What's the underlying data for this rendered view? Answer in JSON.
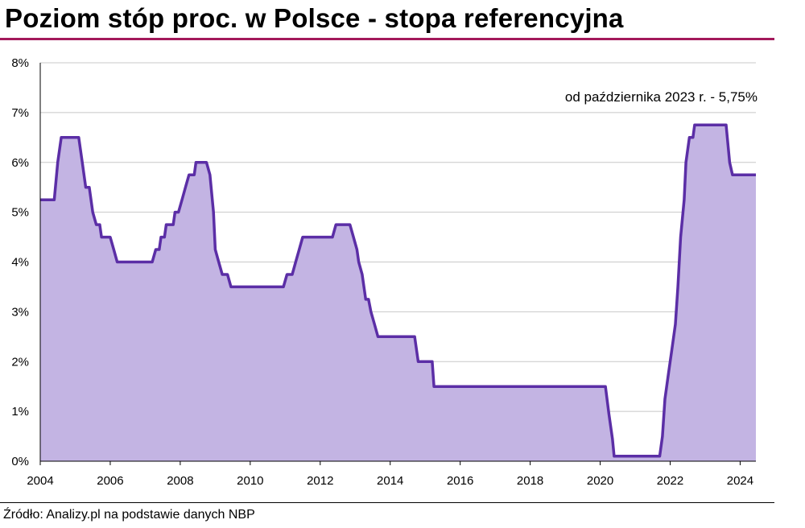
{
  "title": "Poziom stóp proc. w Polsce - stopa referencyjna",
  "source": "Źródło: Analizy.pl na podstawie danych NBP",
  "colors": {
    "title_rule": "#a3195b",
    "line": "#5b2ea6",
    "area": "#c3b4e3",
    "grid": "#c8c8c8",
    "axis": "#000000"
  },
  "chart_data": {
    "type": "area",
    "annotation": "od października  2023 r. - 5,75%",
    "xlim": [
      2004,
      2024.45
    ],
    "ylim": [
      0,
      8
    ],
    "x_ticks": [
      2004,
      2006,
      2008,
      2010,
      2012,
      2014,
      2016,
      2018,
      2020,
      2022,
      2024
    ],
    "x_tick_labels": [
      "2004",
      "2006",
      "2008",
      "2010",
      "2012",
      "2014",
      "2016",
      "2018",
      "2020",
      "2022",
      "2024"
    ],
    "y_ticks": [
      0,
      1,
      2,
      3,
      4,
      5,
      6,
      7,
      8
    ],
    "y_tick_labels": [
      "0%",
      "1%",
      "2%",
      "3%",
      "4%",
      "5%",
      "6%",
      "7%",
      "8%"
    ],
    "grid": true,
    "series": [
      {
        "points": [
          [
            2004.0,
            5.25
          ],
          [
            2004.4,
            5.25
          ],
          [
            2004.5,
            6.0
          ],
          [
            2004.6,
            6.5
          ],
          [
            2005.1,
            6.5
          ],
          [
            2005.2,
            6.0
          ],
          [
            2005.3,
            5.5
          ],
          [
            2005.4,
            5.5
          ],
          [
            2005.5,
            5.0
          ],
          [
            2005.6,
            4.75
          ],
          [
            2005.7,
            4.75
          ],
          [
            2005.75,
            4.5
          ],
          [
            2006.0,
            4.5
          ],
          [
            2006.1,
            4.25
          ],
          [
            2006.2,
            4.0
          ],
          [
            2007.2,
            4.0
          ],
          [
            2007.3,
            4.25
          ],
          [
            2007.4,
            4.25
          ],
          [
            2007.45,
            4.5
          ],
          [
            2007.55,
            4.5
          ],
          [
            2007.6,
            4.75
          ],
          [
            2007.8,
            4.75
          ],
          [
            2007.85,
            5.0
          ],
          [
            2007.95,
            5.0
          ],
          [
            2008.05,
            5.25
          ],
          [
            2008.15,
            5.5
          ],
          [
            2008.25,
            5.75
          ],
          [
            2008.4,
            5.75
          ],
          [
            2008.45,
            6.0
          ],
          [
            2008.75,
            6.0
          ],
          [
            2008.85,
            5.75
          ],
          [
            2008.95,
            5.0
          ],
          [
            2009.0,
            4.25
          ],
          [
            2009.1,
            4.0
          ],
          [
            2009.2,
            3.75
          ],
          [
            2009.35,
            3.75
          ],
          [
            2009.45,
            3.5
          ],
          [
            2010.95,
            3.5
          ],
          [
            2011.05,
            3.75
          ],
          [
            2011.2,
            3.75
          ],
          [
            2011.3,
            4.0
          ],
          [
            2011.4,
            4.25
          ],
          [
            2011.5,
            4.5
          ],
          [
            2012.35,
            4.5
          ],
          [
            2012.45,
            4.75
          ],
          [
            2012.85,
            4.75
          ],
          [
            2012.95,
            4.5
          ],
          [
            2013.05,
            4.25
          ],
          [
            2013.1,
            4.0
          ],
          [
            2013.2,
            3.75
          ],
          [
            2013.3,
            3.25
          ],
          [
            2013.38,
            3.25
          ],
          [
            2013.45,
            3.0
          ],
          [
            2013.55,
            2.75
          ],
          [
            2013.65,
            2.5
          ],
          [
            2014.7,
            2.5
          ],
          [
            2014.8,
            2.0
          ],
          [
            2015.2,
            2.0
          ],
          [
            2015.25,
            1.5
          ],
          [
            2020.15,
            1.5
          ],
          [
            2020.25,
            0.95
          ],
          [
            2020.35,
            0.45
          ],
          [
            2020.4,
            0.1
          ],
          [
            2021.7,
            0.1
          ],
          [
            2021.78,
            0.5
          ],
          [
            2021.85,
            1.25
          ],
          [
            2021.95,
            1.75
          ],
          [
            2022.05,
            2.25
          ],
          [
            2022.15,
            2.75
          ],
          [
            2022.22,
            3.5
          ],
          [
            2022.3,
            4.5
          ],
          [
            2022.4,
            5.25
          ],
          [
            2022.45,
            6.0
          ],
          [
            2022.55,
            6.5
          ],
          [
            2022.65,
            6.5
          ],
          [
            2022.7,
            6.75
          ],
          [
            2023.6,
            6.75
          ],
          [
            2023.7,
            6.0
          ],
          [
            2023.78,
            5.75
          ],
          [
            2024.45,
            5.75
          ]
        ]
      }
    ]
  }
}
